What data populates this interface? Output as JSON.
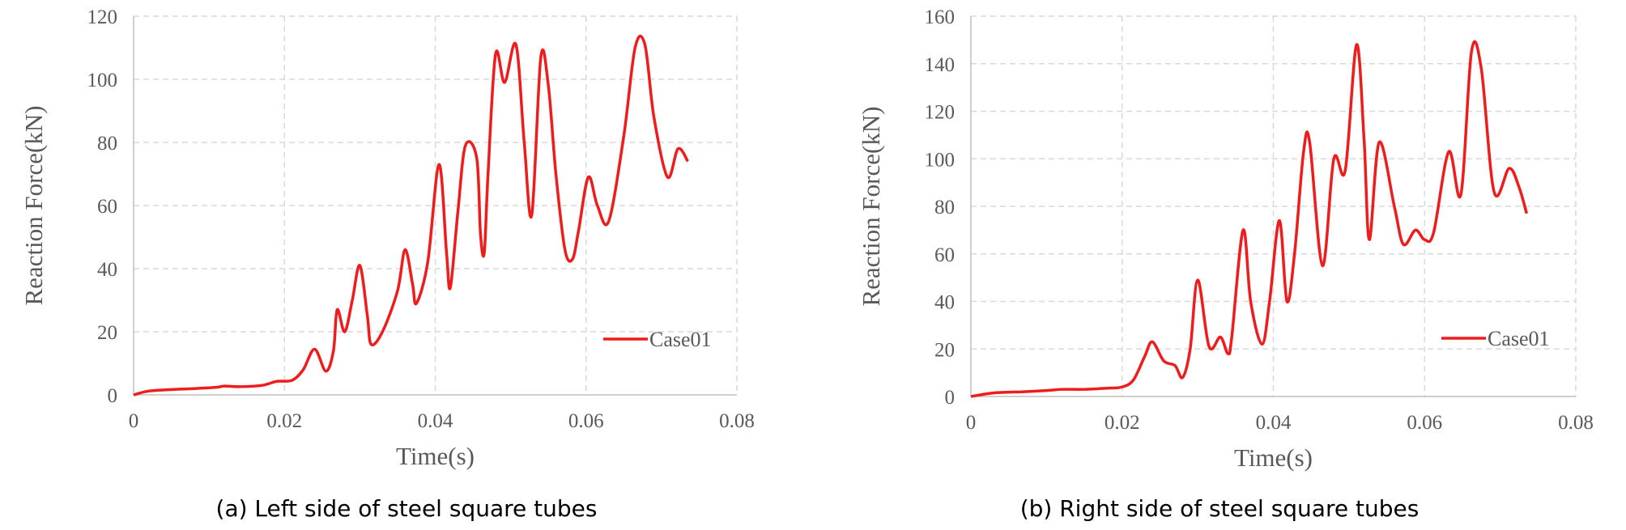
{
  "chart_data": [
    {
      "type": "line",
      "caption": "(a) Left side of steel square tubes",
      "xlabel": "Time(s)",
      "ylabel": "Reaction Force(kN)",
      "xlim": [
        0,
        0.08
      ],
      "ylim": [
        0,
        120
      ],
      "x_ticks": [
        "0",
        "0.02",
        "0.04",
        "0.06",
        "0.08"
      ],
      "y_ticks": [
        "0",
        "20",
        "40",
        "60",
        "80",
        "100",
        "120"
      ],
      "grid": true,
      "legend_position": "bottom-right",
      "color": "#ee1c1c",
      "series": [
        {
          "name": "Case01",
          "points": [
            [
              0,
              0
            ],
            [
              0.002,
              1.2
            ],
            [
              0.005,
              1.7
            ],
            [
              0.008,
              2
            ],
            [
              0.011,
              2.4
            ],
            [
              0.012,
              2.8
            ],
            [
              0.014,
              2.6
            ],
            [
              0.017,
              3
            ],
            [
              0.019,
              4.3
            ],
            [
              0.021,
              4.6
            ],
            [
              0.0225,
              8
            ],
            [
              0.024,
              14.5
            ],
            [
              0.0255,
              7.5
            ],
            [
              0.0265,
              14
            ],
            [
              0.027,
              27
            ],
            [
              0.028,
              20
            ],
            [
              0.029,
              30
            ],
            [
              0.03,
              41
            ],
            [
              0.031,
              25
            ],
            [
              0.0315,
              16
            ],
            [
              0.033,
              20
            ],
            [
              0.035,
              33
            ],
            [
              0.036,
              46
            ],
            [
              0.037,
              35
            ],
            [
              0.0375,
              29
            ],
            [
              0.039,
              42
            ],
            [
              0.0405,
              73
            ],
            [
              0.0415,
              45
            ],
            [
              0.042,
              34
            ],
            [
              0.043,
              58
            ],
            [
              0.044,
              79
            ],
            [
              0.0455,
              75
            ],
            [
              0.046,
              51
            ],
            [
              0.0465,
              45
            ],
            [
              0.047,
              70
            ],
            [
              0.048,
              108
            ],
            [
              0.0492,
              99
            ],
            [
              0.0507,
              111
            ],
            [
              0.0518,
              80
            ],
            [
              0.0528,
              57
            ],
            [
              0.054,
              107
            ],
            [
              0.055,
              98
            ],
            [
              0.056,
              70
            ],
            [
              0.0572,
              46
            ],
            [
              0.0582,
              43
            ],
            [
              0.059,
              52
            ],
            [
              0.0603,
              69
            ],
            [
              0.0615,
              60
            ],
            [
              0.063,
              55
            ],
            [
              0.065,
              82
            ],
            [
              0.0665,
              110
            ],
            [
              0.0678,
              111
            ],
            [
              0.069,
              88
            ],
            [
              0.0708,
              69
            ],
            [
              0.0722,
              78
            ],
            [
              0.0735,
              74
            ]
          ]
        }
      ]
    },
    {
      "type": "line",
      "caption": "(b) Right side of steel square tubes",
      "xlabel": "Time(s)",
      "ylabel": "Reaction Force(kN)",
      "xlim": [
        0,
        0.08
      ],
      "ylim": [
        0,
        160
      ],
      "x_ticks": [
        "0",
        "0.02",
        "0.04",
        "0.06",
        "0.08"
      ],
      "y_ticks": [
        "0",
        "20",
        "40",
        "60",
        "80",
        "100",
        "120",
        "140",
        "160"
      ],
      "grid": true,
      "legend_position": "bottom-right",
      "color": "#ee1c1c",
      "series": [
        {
          "name": "Case01",
          "points": [
            [
              0,
              0
            ],
            [
              0.003,
              1.5
            ],
            [
              0.007,
              2
            ],
            [
              0.01,
              2.5
            ],
            [
              0.012,
              3
            ],
            [
              0.015,
              3
            ],
            [
              0.018,
              3.5
            ],
            [
              0.02,
              4
            ],
            [
              0.0215,
              7
            ],
            [
              0.023,
              17
            ],
            [
              0.024,
              23
            ],
            [
              0.0255,
              15
            ],
            [
              0.027,
              13
            ],
            [
              0.028,
              8
            ],
            [
              0.029,
              20
            ],
            [
              0.03,
              49
            ],
            [
              0.0315,
              21
            ],
            [
              0.033,
              25
            ],
            [
              0.034,
              18
            ],
            [
              0.0345,
              25
            ],
            [
              0.036,
              70
            ],
            [
              0.037,
              40
            ],
            [
              0.0385,
              22
            ],
            [
              0.0395,
              40
            ],
            [
              0.0408,
              74
            ],
            [
              0.0418,
              40
            ],
            [
              0.0428,
              60
            ],
            [
              0.044,
              103
            ],
            [
              0.0448,
              107
            ],
            [
              0.0465,
              55
            ],
            [
              0.048,
              100
            ],
            [
              0.0495,
              95
            ],
            [
              0.051,
              148
            ],
            [
              0.052,
              108
            ],
            [
              0.0527,
              66
            ],
            [
              0.054,
              107
            ],
            [
              0.056,
              80
            ],
            [
              0.0572,
              64
            ],
            [
              0.0588,
              70
            ],
            [
              0.06,
              66
            ],
            [
              0.0612,
              69
            ],
            [
              0.0632,
              103
            ],
            [
              0.0648,
              85
            ],
            [
              0.0662,
              145
            ],
            [
              0.0675,
              138
            ],
            [
              0.0692,
              86
            ],
            [
              0.0712,
              96
            ],
            [
              0.0725,
              88
            ],
            [
              0.0735,
              77
            ]
          ]
        }
      ]
    }
  ]
}
